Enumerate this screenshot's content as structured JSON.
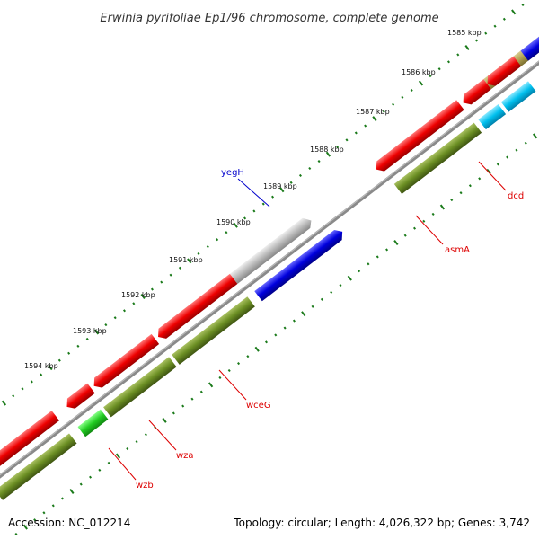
{
  "title": "Erwinia pyrifoliae Ep1/96 chromosome, complete genome",
  "footer": {
    "accession": "Accession: NC_012214",
    "summary": "Topology: circular; Length: 4,026,322 bp; Genes: 3,742"
  },
  "colors": {
    "backbone": "#888888",
    "tick": "#1a7a1a",
    "forward_cds": "#0000dd",
    "reverse_cds": "#ee0000",
    "cds_olive": "#6b8e23",
    "pseudo_gray": "#b8b8b8",
    "cyan_cds": "#00c0ee",
    "green_cds": "#22cc22",
    "tan_cds": "#b0a050",
    "label_blue": "#0000cc",
    "label_red": "#dd0000"
  },
  "ticks": [
    {
      "label": "1585 kbp"
    },
    {
      "label": "1586 kbp"
    },
    {
      "label": "1587 kbp"
    },
    {
      "label": "1588 kbp"
    },
    {
      "label": "1589 kbp"
    },
    {
      "label": "1590 kbp"
    },
    {
      "label": "1591 kbp"
    },
    {
      "label": "1592 kbp"
    },
    {
      "label": "1593 kbp"
    },
    {
      "label": "1594 kbp"
    }
  ],
  "gene_labels": [
    {
      "name": "yegH",
      "color": "label_blue"
    },
    {
      "name": "dcd",
      "color": "label_red"
    },
    {
      "name": "asmA",
      "color": "label_red"
    },
    {
      "name": "wceG",
      "color": "label_red"
    },
    {
      "name": "wza",
      "color": "label_red"
    },
    {
      "name": "wzb",
      "color": "label_red"
    }
  ]
}
